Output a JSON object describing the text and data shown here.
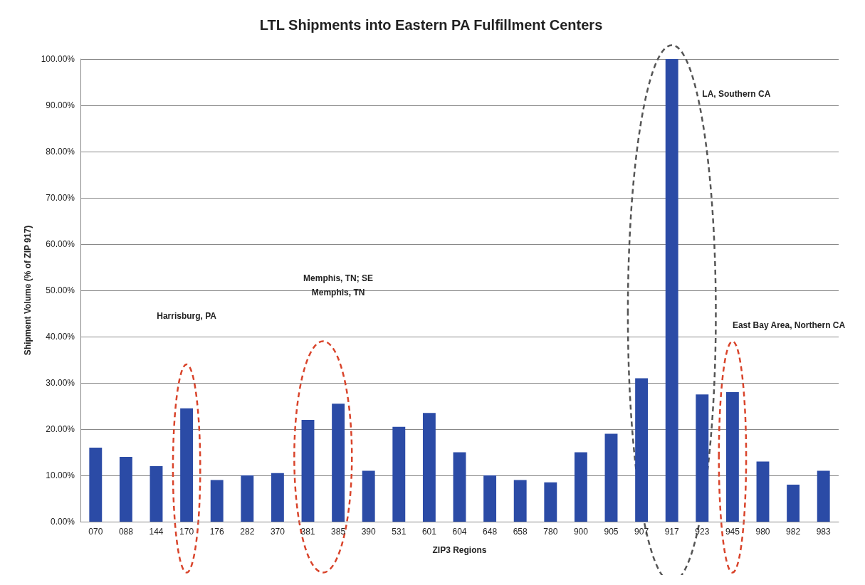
{
  "chart_data": {
    "type": "bar",
    "title": "LTL Shipments into Eastern PA Fulfillment Centers",
    "xlabel": "ZIP3 Regions",
    "ylabel": "Shipment Volume (% of ZIP 917)",
    "categories": [
      "070",
      "088",
      "144",
      "170",
      "176",
      "282",
      "370",
      "381",
      "385",
      "390",
      "531",
      "601",
      "604",
      "648",
      "658",
      "780",
      "900",
      "905",
      "907",
      "917",
      "923",
      "945",
      "980",
      "982",
      "983"
    ],
    "values": [
      16,
      14,
      12,
      24.5,
      9,
      10,
      10.5,
      22,
      25.5,
      11,
      20.5,
      23.5,
      15,
      10,
      9,
      8.5,
      15,
      19,
      31,
      100,
      27.5,
      28,
      13,
      8,
      11
    ],
    "color": "#2b4ba6",
    "ylim": [
      0,
      100
    ],
    "yticks": [
      {
        "value": 0,
        "label": "0.00%"
      },
      {
        "value": 10,
        "label": "10.00%"
      },
      {
        "value": 20,
        "label": "20.00%"
      },
      {
        "value": 30,
        "label": "30.00%"
      },
      {
        "value": 40,
        "label": "40.00%"
      },
      {
        "value": 50,
        "label": "50.00%"
      },
      {
        "value": 60,
        "label": "60.00%"
      },
      {
        "value": 70,
        "label": "70.00%"
      },
      {
        "value": 80,
        "label": "80.00%"
      },
      {
        "value": 90,
        "label": "90.00%"
      },
      {
        "value": 100,
        "label": "100.00%"
      }
    ],
    "grid": "y",
    "annotations": [
      "Harrisburg, PA",
      "Memphis, TN; SE\nMemphis, TN",
      "LA, Southern CA",
      "East Bay Area, Northern CA"
    ]
  }
}
